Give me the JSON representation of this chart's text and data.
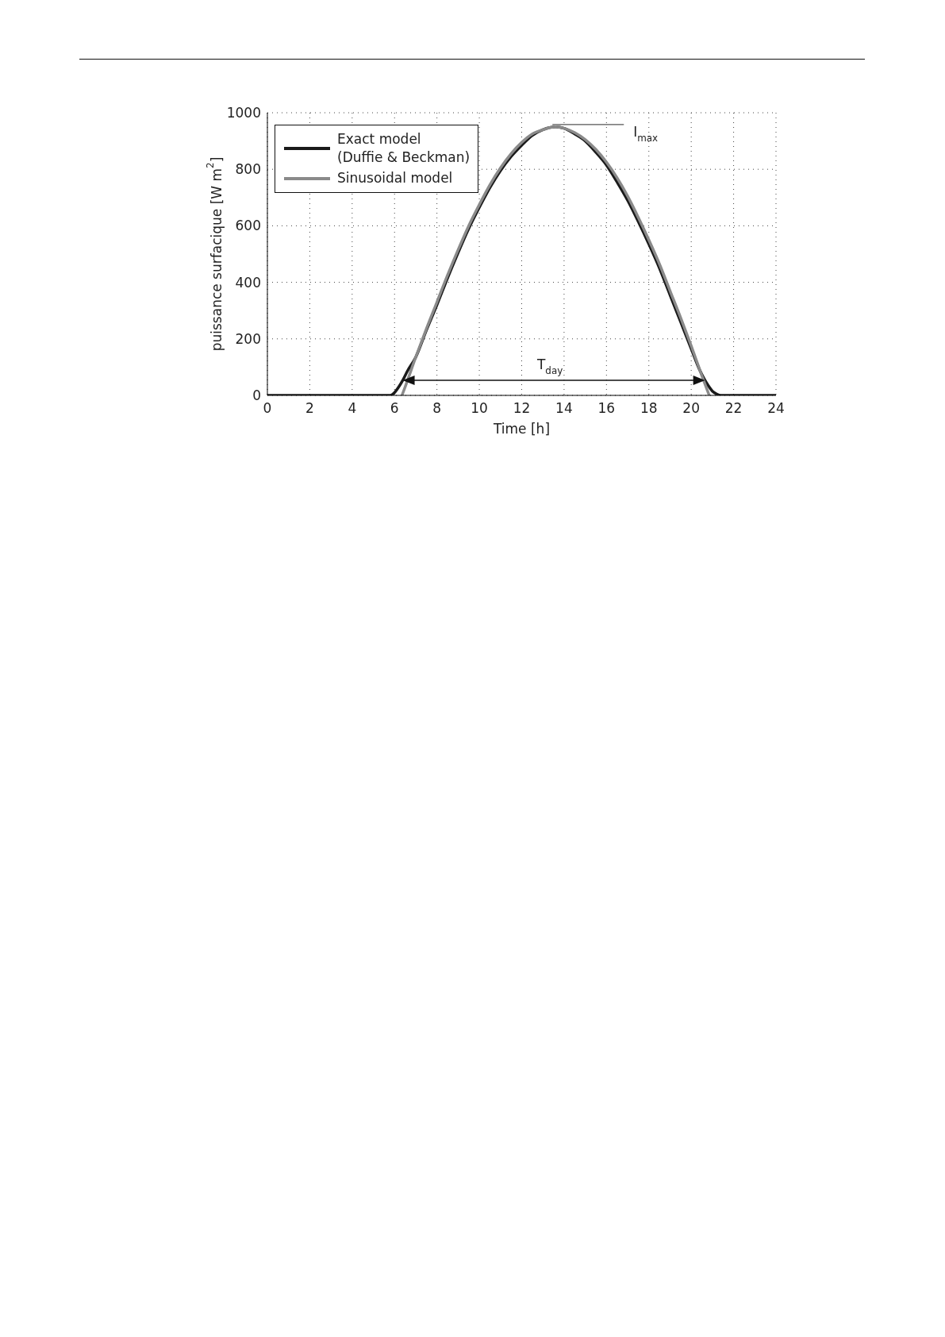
{
  "chart_data": {
    "type": "line",
    "xlabel": "Time [h]",
    "ylabel": "puissance surfacique [W m$^{2}$]",
    "xlim": [
      0,
      24
    ],
    "xticks": [
      0,
      2,
      4,
      6,
      8,
      10,
      12,
      14,
      16,
      18,
      20,
      22,
      24
    ],
    "ylim": [
      0,
      1000
    ],
    "yticks": [
      0,
      200,
      400,
      600,
      800,
      1000
    ],
    "grid": true,
    "legend": "top left",
    "series": [
      {
        "name": "Exact model\n(Duffie & Beckman)",
        "color": "#1a1a1a",
        "x": [
          0,
          5.6,
          5.8,
          6,
          6.2,
          6.4,
          6.6,
          7,
          7.5,
          8,
          8.5,
          9,
          9.5,
          10,
          10.5,
          11,
          11.5,
          12,
          12.5,
          13,
          13.6,
          14,
          14.5,
          15,
          15.5,
          16,
          16.5,
          17,
          17.5,
          18,
          18.5,
          19,
          19.5,
          20,
          20.4,
          20.6,
          20.8,
          21,
          21.2,
          21.4,
          24
        ],
        "values": [
          0,
          0,
          0,
          10,
          30,
          55,
          85,
          135,
          230,
          320,
          415,
          505,
          590,
          665,
          735,
          795,
          845,
          885,
          920,
          940,
          950,
          945,
          925,
          900,
          860,
          815,
          755,
          690,
          615,
          535,
          450,
          355,
          260,
          165,
          90,
          60,
          35,
          15,
          5,
          0,
          0
        ]
      },
      {
        "name": "Sinusoidal model",
        "color": "#8a8a8a",
        "x": [
          6.35,
          6.5,
          7,
          7.5,
          8,
          8.5,
          9,
          9.5,
          10,
          10.5,
          11,
          11.5,
          12,
          12.5,
          13,
          13.6,
          14,
          14.5,
          15,
          15.5,
          16,
          16.5,
          17,
          17.5,
          18,
          18.5,
          19,
          19.5,
          20,
          20.5,
          20.85
        ],
        "values": [
          0,
          30,
          135,
          235,
          330,
          425,
          515,
          600,
          675,
          745,
          805,
          855,
          895,
          925,
          940,
          950,
          945,
          930,
          905,
          870,
          825,
          770,
          705,
          630,
          550,
          465,
          370,
          275,
          175,
          70,
          0
        ]
      }
    ],
    "annotations": [
      "T$_{day}$",
      {
        "text": "I$_{max}$",
        "x": 13.6,
        "y": 950
      }
    ]
  }
}
